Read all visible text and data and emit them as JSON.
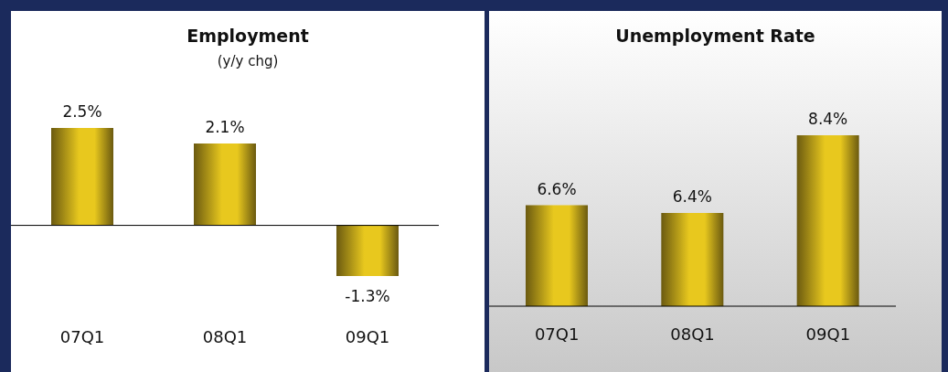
{
  "chart_data": [
    {
      "type": "bar",
      "title": "Employment",
      "subtitle": "(y/y chg)",
      "categories": [
        "07Q1",
        "08Q1",
        "09Q1"
      ],
      "values": [
        2.5,
        2.1,
        -1.3
      ],
      "color": "#e8c81e",
      "value_labels": [
        "2.5%",
        "2.1%",
        "-1.3%"
      ],
      "ylim": [
        -1.3,
        2.5
      ],
      "tick_labels": "x",
      "grid": false,
      "legend": false
    },
    {
      "type": "bar",
      "title": "Unemployment Rate",
      "categories": [
        "07Q1",
        "08Q1",
        "09Q1"
      ],
      "values": [
        6.6,
        6.4,
        8.4
      ],
      "color": "#e8c81e",
      "value_labels": [
        "6.6%",
        "6.4%",
        "8.4%"
      ],
      "ylim": [
        4,
        8.4
      ],
      "tick_labels": "x",
      "grid": false,
      "legend": false
    }
  ]
}
